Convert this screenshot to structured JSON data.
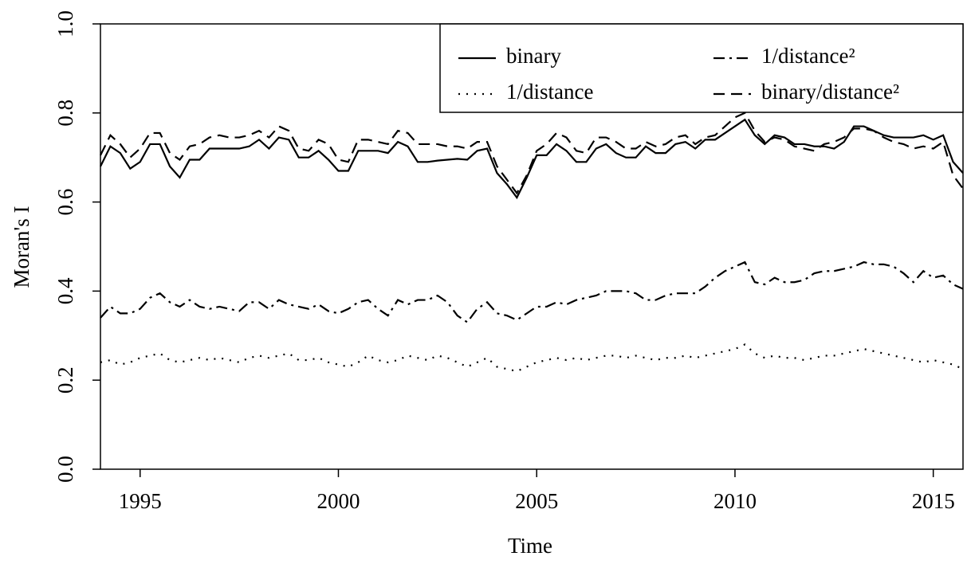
{
  "chart_data": {
    "type": "line",
    "xlabel": "Time",
    "ylabel": "Moran's I",
    "x": [
      1994,
      1994.25,
      1994.5,
      1994.75,
      1995,
      1995.25,
      1995.5,
      1995.75,
      1996,
      1996.25,
      1996.5,
      1996.75,
      1997,
      1997.25,
      1997.5,
      1997.75,
      1998,
      1998.25,
      1998.5,
      1998.75,
      1999,
      1999.25,
      1999.5,
      1999.75,
      2000,
      2000.25,
      2000.5,
      2000.75,
      2001,
      2001.25,
      2001.5,
      2001.75,
      2002,
      2002.25,
      2002.5,
      2002.75,
      2003,
      2003.25,
      2003.5,
      2003.75,
      2004,
      2004.25,
      2004.5,
      2004.75,
      2005,
      2005.25,
      2005.5,
      2005.75,
      2006,
      2006.25,
      2006.5,
      2006.75,
      2007,
      2007.25,
      2007.5,
      2007.75,
      2008,
      2008.25,
      2008.5,
      2008.75,
      2009,
      2009.25,
      2009.5,
      2009.75,
      2010,
      2010.25,
      2010.5,
      2010.75,
      2011,
      2011.25,
      2011.5,
      2011.75,
      2012,
      2012.25,
      2012.5,
      2012.75,
      2013,
      2013.25,
      2013.5,
      2013.75,
      2014,
      2014.25,
      2014.5,
      2014.75,
      2015,
      2015.25,
      2015.5,
      2015.75
    ],
    "series": [
      {
        "name": "binary",
        "color": "#000000",
        "linestyle": "solid",
        "values": [
          0.68,
          0.725,
          0.71,
          0.675,
          0.69,
          0.73,
          0.73,
          0.68,
          0.655,
          0.695,
          0.695,
          0.72,
          0.72,
          0.72,
          0.72,
          0.725,
          0.74,
          0.72,
          0.745,
          0.74,
          0.7,
          0.7,
          0.715,
          0.695,
          0.67,
          0.67,
          0.715,
          0.715,
          0.715,
          0.71,
          0.735,
          0.725,
          0.69,
          0.69,
          0.693,
          0.695,
          0.697,
          0.695,
          0.715,
          0.72,
          0.665,
          0.64,
          0.61,
          0.655,
          0.705,
          0.705,
          0.73,
          0.715,
          0.69,
          0.69,
          0.72,
          0.73,
          0.71,
          0.7,
          0.7,
          0.725,
          0.71,
          0.71,
          0.73,
          0.735,
          0.72,
          0.74,
          0.74,
          0.755,
          0.77,
          0.785,
          0.75,
          0.73,
          0.75,
          0.745,
          0.73,
          0.73,
          0.725,
          0.725,
          0.72,
          0.735,
          0.77,
          0.77,
          0.76,
          0.75,
          0.745,
          0.745,
          0.745,
          0.75,
          0.74,
          0.75,
          0.69,
          0.665
        ]
      },
      {
        "name": "1/distance",
        "color": "#000000",
        "linestyle": "dotted",
        "values": [
          0.24,
          0.245,
          0.235,
          0.24,
          0.25,
          0.255,
          0.26,
          0.245,
          0.24,
          0.245,
          0.25,
          0.245,
          0.25,
          0.245,
          0.24,
          0.25,
          0.255,
          0.25,
          0.255,
          0.26,
          0.245,
          0.245,
          0.25,
          0.24,
          0.235,
          0.23,
          0.24,
          0.255,
          0.245,
          0.24,
          0.245,
          0.255,
          0.25,
          0.245,
          0.255,
          0.25,
          0.24,
          0.23,
          0.24,
          0.25,
          0.23,
          0.225,
          0.22,
          0.23,
          0.24,
          0.245,
          0.25,
          0.245,
          0.25,
          0.245,
          0.25,
          0.255,
          0.255,
          0.25,
          0.255,
          0.25,
          0.245,
          0.25,
          0.25,
          0.255,
          0.25,
          0.255,
          0.26,
          0.265,
          0.27,
          0.28,
          0.26,
          0.25,
          0.255,
          0.25,
          0.25,
          0.245,
          0.25,
          0.255,
          0.255,
          0.26,
          0.265,
          0.27,
          0.265,
          0.26,
          0.255,
          0.25,
          0.245,
          0.24,
          0.245,
          0.24,
          0.235,
          0.225
        ]
      },
      {
        "name": "1/distance²",
        "color": "#000000",
        "linestyle": "dashdot",
        "values": [
          0.34,
          0.365,
          0.35,
          0.35,
          0.36,
          0.385,
          0.395,
          0.375,
          0.365,
          0.38,
          0.365,
          0.36,
          0.365,
          0.36,
          0.355,
          0.375,
          0.375,
          0.36,
          0.38,
          0.37,
          0.365,
          0.36,
          0.37,
          0.355,
          0.35,
          0.36,
          0.375,
          0.38,
          0.36,
          0.345,
          0.38,
          0.37,
          0.38,
          0.38,
          0.39,
          0.375,
          0.345,
          0.33,
          0.36,
          0.375,
          0.35,
          0.345,
          0.335,
          0.35,
          0.365,
          0.365,
          0.375,
          0.37,
          0.38,
          0.385,
          0.39,
          0.4,
          0.4,
          0.4,
          0.395,
          0.38,
          0.38,
          0.39,
          0.395,
          0.395,
          0.395,
          0.41,
          0.43,
          0.445,
          0.455,
          0.465,
          0.42,
          0.415,
          0.43,
          0.42,
          0.42,
          0.425,
          0.44,
          0.445,
          0.445,
          0.45,
          0.455,
          0.465,
          0.46,
          0.46,
          0.455,
          0.44,
          0.42,
          0.445,
          0.43,
          0.435,
          0.415,
          0.405
        ]
      },
      {
        "name": "binary/distance²",
        "color": "#000000",
        "linestyle": "dashed",
        "values": [
          0.705,
          0.75,
          0.73,
          0.7,
          0.72,
          0.755,
          0.755,
          0.71,
          0.695,
          0.725,
          0.73,
          0.745,
          0.75,
          0.745,
          0.745,
          0.75,
          0.76,
          0.745,
          0.77,
          0.76,
          0.72,
          0.715,
          0.74,
          0.73,
          0.695,
          0.69,
          0.74,
          0.74,
          0.735,
          0.73,
          0.76,
          0.755,
          0.73,
          0.73,
          0.73,
          0.725,
          0.725,
          0.72,
          0.735,
          0.735,
          0.68,
          0.65,
          0.62,
          0.66,
          0.715,
          0.73,
          0.755,
          0.745,
          0.715,
          0.71,
          0.745,
          0.745,
          0.735,
          0.72,
          0.72,
          0.735,
          0.725,
          0.73,
          0.745,
          0.75,
          0.73,
          0.745,
          0.75,
          0.77,
          0.79,
          0.8,
          0.76,
          0.735,
          0.745,
          0.74,
          0.725,
          0.72,
          0.715,
          0.73,
          0.735,
          0.745,
          0.765,
          0.765,
          0.76,
          0.745,
          0.735,
          0.73,
          0.72,
          0.725,
          0.72,
          0.735,
          0.66,
          0.63
        ]
      }
    ],
    "xlim": [
      1994,
      2015.75
    ],
    "xticks": [
      1995,
      2000,
      2005,
      2010,
      2015
    ],
    "ylim": [
      0,
      1
    ],
    "yticks": [
      {
        "value": 0,
        "label": "0.0"
      },
      0.2,
      0.4,
      0.6,
      0.8,
      {
        "value": 1,
        "label": "1.0"
      }
    ],
    "legend": "top-right"
  }
}
